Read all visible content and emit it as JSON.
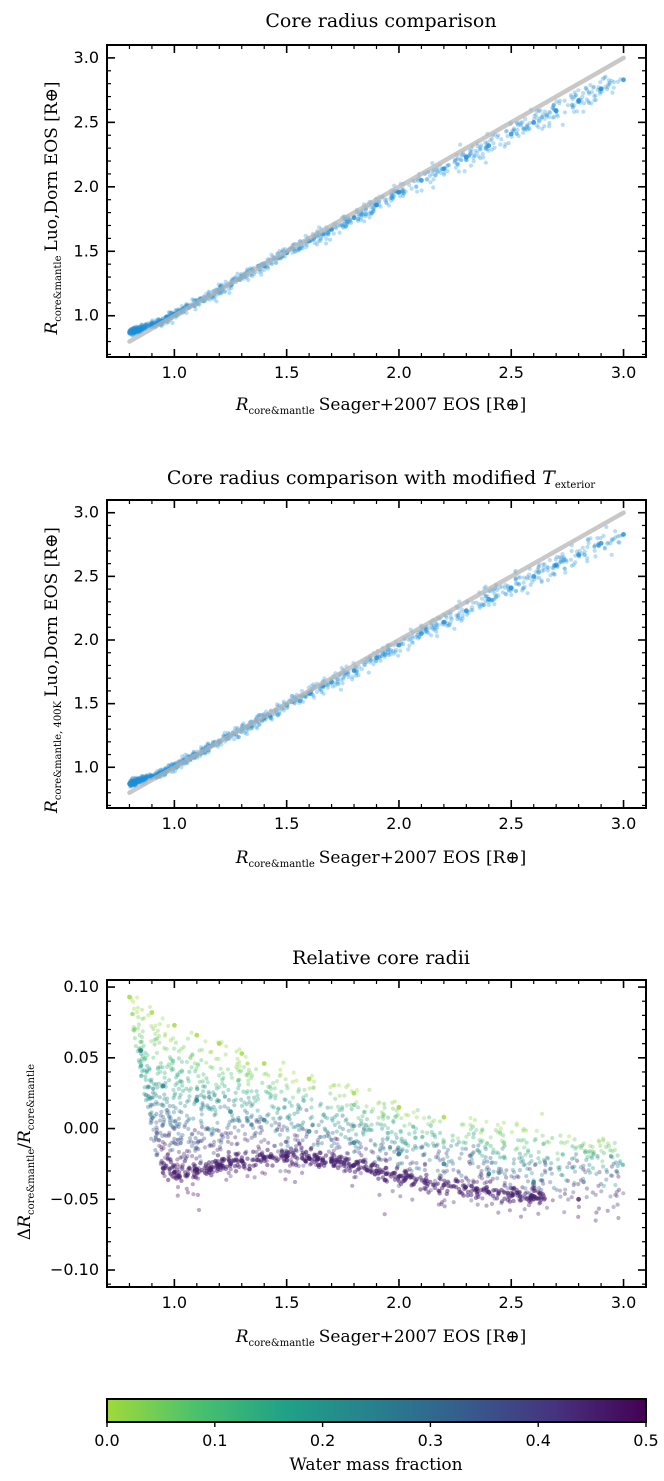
{
  "chart_data": [
    {
      "type": "scatter",
      "title": "Core radius comparison",
      "xlabel": {
        "symbol": "R",
        "sub": "core&mantle",
        "text": "Seager+2007 EOS [R⊕]"
      },
      "ylabel": {
        "symbol": "R",
        "sub": "core&mantle",
        "text": "Luo,Dorn EOS [R⊕]"
      },
      "xlim": [
        0.7,
        3.1
      ],
      "ylim": [
        0.68,
        3.1
      ],
      "xticks": [
        "1.0",
        "1.5",
        "2.0",
        "2.5",
        "3.0"
      ],
      "yticks": [
        "1.0",
        "1.5",
        "2.0",
        "2.5",
        "3.0"
      ],
      "reference_line": {
        "x": [
          0.8,
          3.0
        ],
        "y": [
          0.8,
          3.0
        ],
        "color": "#b5b5b5"
      },
      "point_color": "#1f8fd6",
      "series": [
        {
          "x": [
            0.8,
            0.9,
            0.95,
            1.0,
            1.1,
            1.2,
            1.3,
            1.4,
            1.5,
            1.6,
            1.7,
            1.8,
            1.9,
            2.0,
            2.1,
            2.2,
            2.3,
            2.4,
            2.5,
            2.6,
            2.7,
            2.8,
            2.9,
            3.0
          ],
          "y": [
            0.87,
            0.93,
            0.96,
            1.01,
            1.1,
            1.2,
            1.3,
            1.39,
            1.49,
            1.58,
            1.67,
            1.76,
            1.86,
            1.96,
            2.05,
            2.14,
            2.23,
            2.32,
            2.41,
            2.5,
            2.59,
            2.67,
            2.76,
            2.83
          ]
        }
      ],
      "grid": false
    },
    {
      "type": "scatter",
      "title": {
        "prefix": "Core radius comparison with modified ",
        "symbol": "T",
        "sub": "exterior"
      },
      "xlabel": {
        "symbol": "R",
        "sub": "core&mantle",
        "text": "Seager+2007 EOS [R⊕]"
      },
      "ylabel": {
        "symbol": "R",
        "sub": "core&mantle, 400K",
        "text": "Luo,Dorn EOS [R⊕]"
      },
      "xlim": [
        0.7,
        3.1
      ],
      "ylim": [
        0.68,
        3.1
      ],
      "xticks": [
        "1.0",
        "1.5",
        "2.0",
        "2.5",
        "3.0"
      ],
      "yticks": [
        "1.0",
        "1.5",
        "2.0",
        "2.5",
        "3.0"
      ],
      "reference_line": {
        "x": [
          0.8,
          3.0
        ],
        "y": [
          0.8,
          3.0
        ],
        "color": "#b5b5b5"
      },
      "point_color": "#1f8fd6",
      "series": [
        {
          "x": [
            0.8,
            0.9,
            0.95,
            1.0,
            1.1,
            1.2,
            1.3,
            1.4,
            1.5,
            1.6,
            1.7,
            1.8,
            1.9,
            2.0,
            2.1,
            2.2,
            2.3,
            2.4,
            2.5,
            2.6,
            2.7,
            2.8,
            2.9,
            3.0
          ],
          "y": [
            0.87,
            0.93,
            0.96,
            1.01,
            1.1,
            1.2,
            1.3,
            1.39,
            1.49,
            1.58,
            1.67,
            1.76,
            1.86,
            1.96,
            2.05,
            2.14,
            2.23,
            2.32,
            2.41,
            2.5,
            2.59,
            2.67,
            2.76,
            2.83
          ]
        }
      ],
      "grid": false
    },
    {
      "type": "scatter",
      "title": "Relative core radii",
      "xlabel": {
        "symbol": "R",
        "sub": "core&mantle",
        "text": "Seager+2007 EOS [R⊕]"
      },
      "ylabel": {
        "prefix": "Δ",
        "symbol": "R",
        "sub": "core&mantle",
        "mid": "/",
        "symbol2": "R",
        "sub2": "core&mantle"
      },
      "xlim": [
        0.7,
        3.1
      ],
      "ylim": [
        -0.112,
        0.105
      ],
      "xticks": [
        "1.0",
        "1.5",
        "2.0",
        "2.5",
        "3.0"
      ],
      "yticks": [
        "0.10",
        "0.05",
        "0.00",
        "−0.05",
        "−0.10"
      ],
      "series": [
        {
          "name": "",
          "water_mass_fraction": 0.0,
          "x": [
            0.8,
            0.9,
            1.0,
            1.1,
            1.2,
            1.3,
            1.4,
            1.6,
            1.8,
            2.0,
            2.2
          ],
          "y": [
            0.093,
            0.082,
            0.073,
            0.066,
            0.06,
            0.053,
            0.046,
            0.035,
            0.025,
            0.015,
            0.008
          ]
        },
        {
          "name": "",
          "water_mass_fraction": 0.25,
          "x": [
            0.85,
            0.95,
            1.1,
            1.25,
            1.4,
            1.6,
            1.8,
            2.0,
            2.2,
            2.4,
            2.6
          ],
          "y": [
            0.055,
            0.03,
            0.02,
            0.012,
            0.006,
            -0.002,
            -0.01,
            -0.018,
            -0.025,
            -0.032,
            -0.038
          ]
        },
        {
          "name": "",
          "water_mass_fraction": 0.45,
          "x": [
            0.95,
            1.0,
            1.1,
            1.2,
            1.3,
            1.4,
            1.5,
            1.6,
            1.7,
            1.8,
            1.9,
            2.0,
            2.2,
            2.4,
            2.6,
            2.8
          ],
          "y": [
            -0.028,
            -0.031,
            -0.029,
            -0.026,
            -0.023,
            -0.021,
            -0.02,
            -0.021,
            -0.023,
            -0.026,
            -0.03,
            -0.034,
            -0.04,
            -0.045,
            -0.048,
            -0.05
          ]
        }
      ],
      "grid": false
    },
    {
      "type": "colorbar",
      "label": "Water mass fraction",
      "range": [
        0.0,
        0.5
      ],
      "ticks": [
        "0.0",
        "0.1",
        "0.2",
        "0.3",
        "0.4",
        "0.5"
      ],
      "colormap": "viridis_r",
      "stops": [
        "#a0da39",
        "#4ac16d",
        "#1fa187",
        "#277f8e",
        "#365c8d",
        "#46327e",
        "#440154"
      ]
    }
  ]
}
